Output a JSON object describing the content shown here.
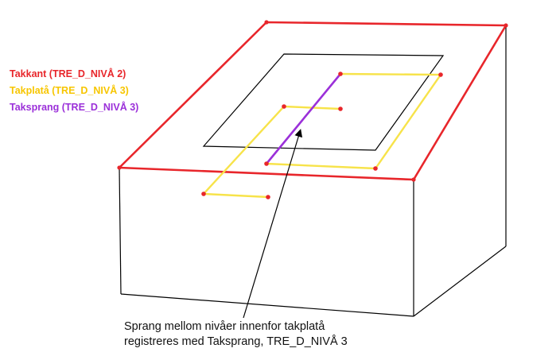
{
  "legend": [
    {
      "label": "Takkant (TRE_D_NIVÅ 2)",
      "color": "#e8262b"
    },
    {
      "label": "Takplatå (TRE_D_NIVÅ 3)",
      "color": "#f7c600"
    },
    {
      "label": "Taksprang (TRE_D_NIVÅ 3)",
      "color": "#9b30d9"
    }
  ],
  "caption": {
    "line1": "Sprang mellom nivåer innenfor takplatå",
    "line2": "registreres med Taksprang, TRE_D_NIVÅ 3"
  },
  "colors": {
    "outline": "#000000",
    "takkant": "#e8262b",
    "takplata": "#f7e34a",
    "taksprang": "#9b30d9",
    "vertex": "#e8262b"
  }
}
